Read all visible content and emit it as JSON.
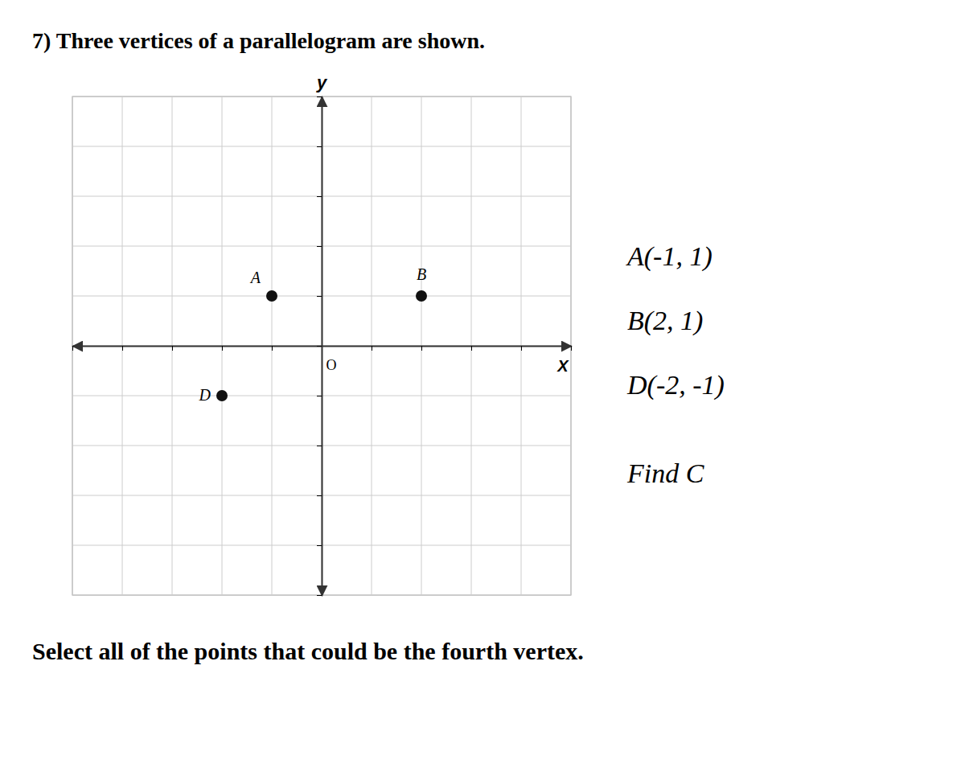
{
  "chart_data": {
    "type": "scatter",
    "title": "7) Three vertices of a parallelogram are shown.",
    "xlabel": "X",
    "ylabel": "y",
    "origin_label": "O",
    "x": [
      -1,
      2,
      -2
    ],
    "values": [
      1,
      1,
      -1
    ],
    "point_labels": [
      "A",
      "B",
      "D"
    ],
    "color": "#111111",
    "xlim": [
      -5,
      5
    ],
    "ylim": [
      -5,
      5
    ],
    "xticks": [
      -5,
      -4,
      -3,
      -2,
      -1,
      0,
      1,
      2,
      3,
      4,
      5
    ],
    "yticks": [
      -5,
      -4,
      -3,
      -2,
      -1,
      0,
      1,
      2,
      3,
      4,
      5
    ],
    "grid": true,
    "tick_labels": false,
    "annotations": [
      "A(-1, 1)",
      "B(2, 1)",
      "D(-2, -1)",
      "Find C"
    ],
    "caption": "Select all of the points that could be the fourth vertex."
  }
}
